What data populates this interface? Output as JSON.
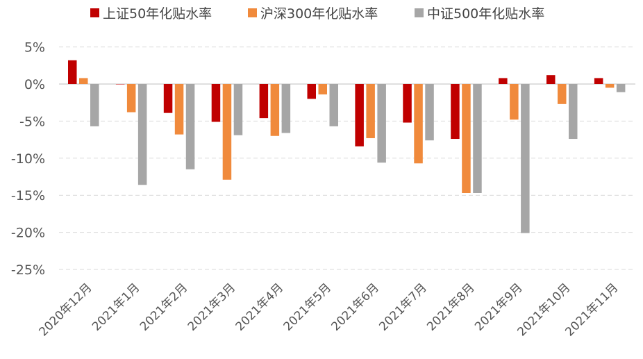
{
  "chart_data": {
    "type": "bar",
    "categories": [
      "2020年12月",
      "2021年1月",
      "2021年2月",
      "2021年3月",
      "2021年4月",
      "2021年5月",
      "2021年6月",
      "2021年7月",
      "2021年8月",
      "2021年9月",
      "2021年10月",
      "2021年11月"
    ],
    "series": [
      {
        "name": "上证50年化贴水率",
        "color": "#C00000",
        "values": [
          3.2,
          0.0,
          -3.9,
          -5.1,
          -4.6,
          -2.0,
          -8.4,
          -5.2,
          -7.4,
          0.8,
          1.2,
          0.8
        ]
      },
      {
        "name": "沪深300年化贴水率",
        "color": "#F08A3C",
        "values": [
          0.8,
          -3.8,
          -6.8,
          -12.9,
          -7.0,
          -1.4,
          -7.3,
          -10.7,
          -14.7,
          -4.8,
          -2.7,
          -0.5
        ]
      },
      {
        "name": "中证500年化贴水率",
        "color": "#A6A6A6",
        "values": [
          -5.7,
          -13.6,
          -11.5,
          -6.9,
          -6.6,
          -5.7,
          -10.6,
          -7.6,
          -14.7,
          -20.1,
          -7.4,
          -1.1
        ]
      }
    ],
    "y_ticks": [
      "5%",
      "0%",
      "-5%",
      "-10%",
      "-15%",
      "-20%",
      "-25%"
    ],
    "y_tick_values": [
      5,
      0,
      -5,
      -10,
      -15,
      -20,
      -25
    ],
    "ylim": [
      -25,
      5
    ],
    "grid": true,
    "legend_position": "top-center",
    "title": "",
    "xlabel": "",
    "ylabel": ""
  }
}
